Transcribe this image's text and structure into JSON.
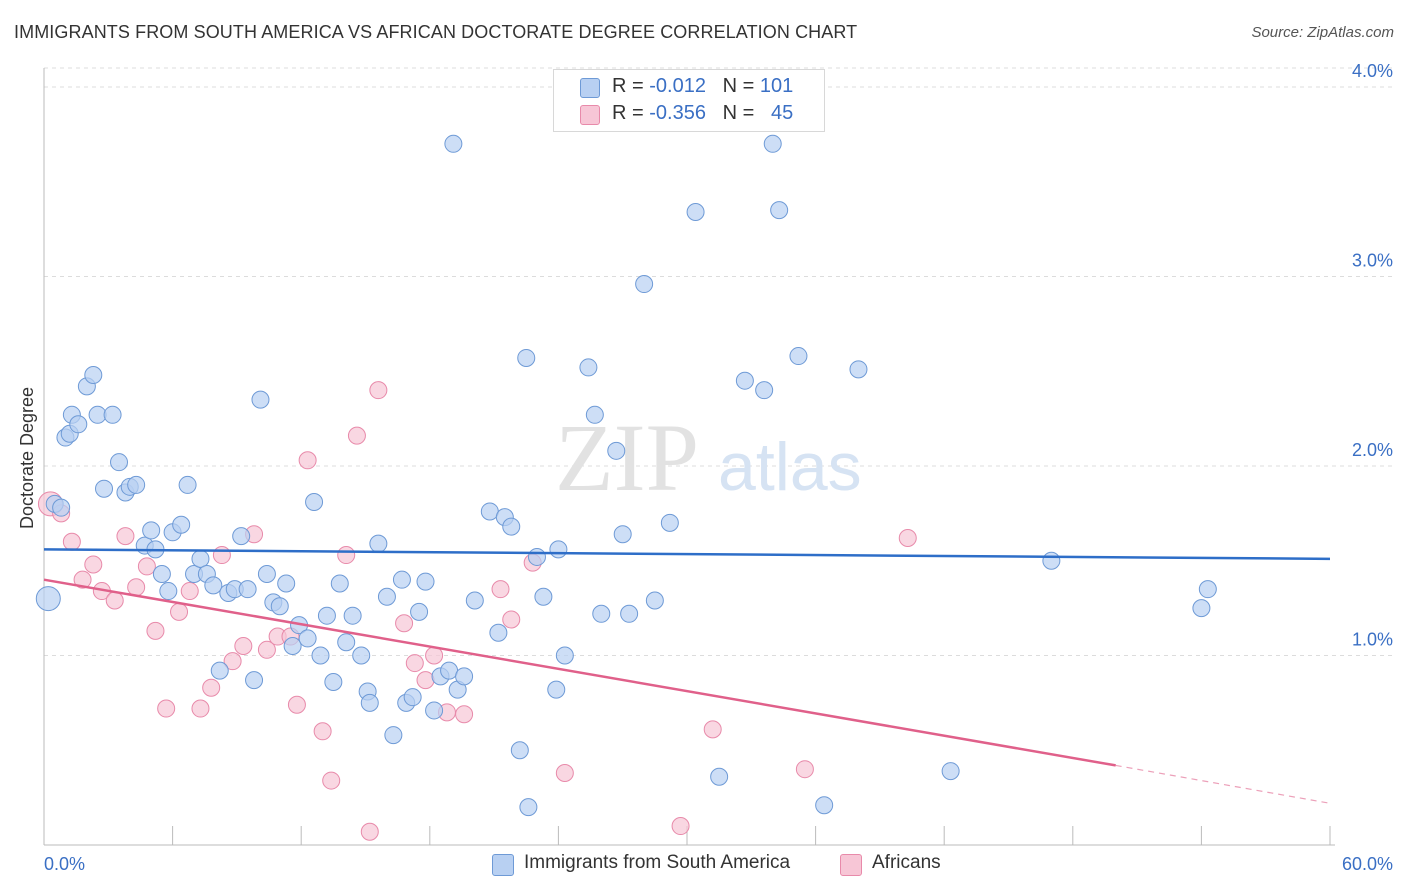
{
  "header": {
    "title": "IMMIGRANTS FROM SOUTH AMERICA VS AFRICAN DOCTORATE DEGREE CORRELATION CHART",
    "source": "Source: ZipAtlas.com"
  },
  "legend": {
    "series1": {
      "r_label": "R = ",
      "r_value": "-0.012",
      "n_label": "N = ",
      "n_value": "101"
    },
    "series2": {
      "r_label": "R = ",
      "r_value": "-0.356",
      "n_label": "N = ",
      "n_value": "45"
    }
  },
  "bottom_legend": {
    "series1": "Immigrants from South America",
    "series2": "Africans"
  },
  "watermark": {
    "zip": "ZIP",
    "atlas": "atlas"
  },
  "colors": {
    "blue_fill": "#b8d0f2",
    "blue_stroke": "#6e9ad6",
    "blue_line": "#2e6ec8",
    "pink_fill": "#f7c6d6",
    "pink_stroke": "#e88aaa",
    "pink_line": "#e0608a",
    "axis_text": "#3a6fc4",
    "grid": "#dcdcdc"
  },
  "chart_data": {
    "type": "scatter",
    "title": "IMMIGRANTS FROM SOUTH AMERICA VS AFRICAN DOCTORATE DEGREE CORRELATION CHART",
    "xlabel": "",
    "ylabel": "Doctorate Degree",
    "xlim": [
      0,
      60
    ],
    "ylim": [
      0,
      4.1
    ],
    "x_tick_labels": [
      "0.0%",
      "60.0%"
    ],
    "y_ticks": [
      1.0,
      2.0,
      3.0,
      4.0
    ],
    "y_tick_labels": [
      "1.0%",
      "2.0%",
      "3.0%",
      "4.0%"
    ],
    "grid": true,
    "legend_position": "top-center",
    "series": [
      {
        "name": "Immigrants from South America",
        "r": -0.012,
        "n": 101,
        "trend": {
          "x": [
            0,
            60
          ],
          "y": [
            1.56,
            1.51
          ]
        },
        "points": [
          [
            0.2,
            1.3
          ],
          [
            0.5,
            1.8
          ],
          [
            0.8,
            1.78
          ],
          [
            1.0,
            2.15
          ],
          [
            1.2,
            2.17
          ],
          [
            1.3,
            2.27
          ],
          [
            1.6,
            2.22
          ],
          [
            2.0,
            2.42
          ],
          [
            2.3,
            2.48
          ],
          [
            2.5,
            2.27
          ],
          [
            3.2,
            2.27
          ],
          [
            2.8,
            1.88
          ],
          [
            3.5,
            2.02
          ],
          [
            3.8,
            1.86
          ],
          [
            4.0,
            1.89
          ],
          [
            4.3,
            1.9
          ],
          [
            4.7,
            1.58
          ],
          [
            5.0,
            1.66
          ],
          [
            5.2,
            1.56
          ],
          [
            5.5,
            1.43
          ],
          [
            5.8,
            1.34
          ],
          [
            6.0,
            1.65
          ],
          [
            6.4,
            1.69
          ],
          [
            6.7,
            1.9
          ],
          [
            7.0,
            1.43
          ],
          [
            7.3,
            1.51
          ],
          [
            7.6,
            1.43
          ],
          [
            7.9,
            1.37
          ],
          [
            8.2,
            0.92
          ],
          [
            8.6,
            1.33
          ],
          [
            8.9,
            1.35
          ],
          [
            9.2,
            1.63
          ],
          [
            9.5,
            1.35
          ],
          [
            9.8,
            0.87
          ],
          [
            10.1,
            2.35
          ],
          [
            10.4,
            1.43
          ],
          [
            10.7,
            1.28
          ],
          [
            11.0,
            1.26
          ],
          [
            11.3,
            1.38
          ],
          [
            11.6,
            1.05
          ],
          [
            11.9,
            1.16
          ],
          [
            12.3,
            1.09
          ],
          [
            12.6,
            1.81
          ],
          [
            12.9,
            1.0
          ],
          [
            13.2,
            1.21
          ],
          [
            13.5,
            0.86
          ],
          [
            13.8,
            1.38
          ],
          [
            14.1,
            1.07
          ],
          [
            14.4,
            1.21
          ],
          [
            14.8,
            1.0
          ],
          [
            15.1,
            0.81
          ],
          [
            15.2,
            0.75
          ],
          [
            15.6,
            1.59
          ],
          [
            16.0,
            1.31
          ],
          [
            16.3,
            0.58
          ],
          [
            16.7,
            1.4
          ],
          [
            16.9,
            0.75
          ],
          [
            17.2,
            0.78
          ],
          [
            17.5,
            1.23
          ],
          [
            17.8,
            1.39
          ],
          [
            18.2,
            0.71
          ],
          [
            18.5,
            0.89
          ],
          [
            18.9,
            0.92
          ],
          [
            19.3,
            0.82
          ],
          [
            19.6,
            0.89
          ],
          [
            19.1,
            3.7
          ],
          [
            20.1,
            1.29
          ],
          [
            20.8,
            1.76
          ],
          [
            21.2,
            1.12
          ],
          [
            21.5,
            1.73
          ],
          [
            21.8,
            1.68
          ],
          [
            22.2,
            0.5
          ],
          [
            22.6,
            0.2
          ],
          [
            22.5,
            2.57
          ],
          [
            23.0,
            1.52
          ],
          [
            23.3,
            1.31
          ],
          [
            24.0,
            1.56
          ],
          [
            24.3,
            1.0
          ],
          [
            23.9,
            0.82
          ],
          [
            25.4,
            2.52
          ],
          [
            25.7,
            2.27
          ],
          [
            26.0,
            1.22
          ],
          [
            27.0,
            1.64
          ],
          [
            26.7,
            2.08
          ],
          [
            27.3,
            1.22
          ],
          [
            28.0,
            2.96
          ],
          [
            28.5,
            1.29
          ],
          [
            29.2,
            1.7
          ],
          [
            30.4,
            3.34
          ],
          [
            31.5,
            0.36
          ],
          [
            32.7,
            2.45
          ],
          [
            33.6,
            2.4
          ],
          [
            34.0,
            3.7
          ],
          [
            34.3,
            3.35
          ],
          [
            35.2,
            2.58
          ],
          [
            36.4,
            0.21
          ],
          [
            38.0,
            2.51
          ],
          [
            42.3,
            0.39
          ],
          [
            47.0,
            1.5
          ],
          [
            54.0,
            1.25
          ],
          [
            54.3,
            1.35
          ]
        ]
      },
      {
        "name": "Africans",
        "r": -0.356,
        "n": 45,
        "trend": {
          "x": [
            0,
            50
          ],
          "y": [
            1.4,
            0.42
          ]
        },
        "trend_dashed": {
          "x": [
            50,
            60
          ],
          "y": [
            0.42,
            0.22
          ]
        },
        "points": [
          [
            0.3,
            1.8
          ],
          [
            0.8,
            1.75
          ],
          [
            1.3,
            1.6
          ],
          [
            1.8,
            1.4
          ],
          [
            2.3,
            1.48
          ],
          [
            2.7,
            1.34
          ],
          [
            3.3,
            1.29
          ],
          [
            3.8,
            1.63
          ],
          [
            4.3,
            1.36
          ],
          [
            4.8,
            1.47
          ],
          [
            5.2,
            1.13
          ],
          [
            5.7,
            0.72
          ],
          [
            6.3,
            1.23
          ],
          [
            6.8,
            1.34
          ],
          [
            7.3,
            0.72
          ],
          [
            7.8,
            0.83
          ],
          [
            8.3,
            1.53
          ],
          [
            8.8,
            0.97
          ],
          [
            9.3,
            1.05
          ],
          [
            9.8,
            1.64
          ],
          [
            10.4,
            1.03
          ],
          [
            10.9,
            1.1
          ],
          [
            11.5,
            1.1
          ],
          [
            11.8,
            0.74
          ],
          [
            12.3,
            2.03
          ],
          [
            13.0,
            0.6
          ],
          [
            13.4,
            0.34
          ],
          [
            14.1,
            1.53
          ],
          [
            14.6,
            2.16
          ],
          [
            15.2,
            0.07
          ],
          [
            15.6,
            2.4
          ],
          [
            16.8,
            1.17
          ],
          [
            17.3,
            0.96
          ],
          [
            17.8,
            0.87
          ],
          [
            18.2,
            1.0
          ],
          [
            18.8,
            0.7
          ],
          [
            19.6,
            0.69
          ],
          [
            21.3,
            1.35
          ],
          [
            21.8,
            1.19
          ],
          [
            22.8,
            1.49
          ],
          [
            24.3,
            0.38
          ],
          [
            29.7,
            0.1
          ],
          [
            31.2,
            0.61
          ],
          [
            35.5,
            0.4
          ],
          [
            40.3,
            1.62
          ]
        ]
      }
    ]
  }
}
